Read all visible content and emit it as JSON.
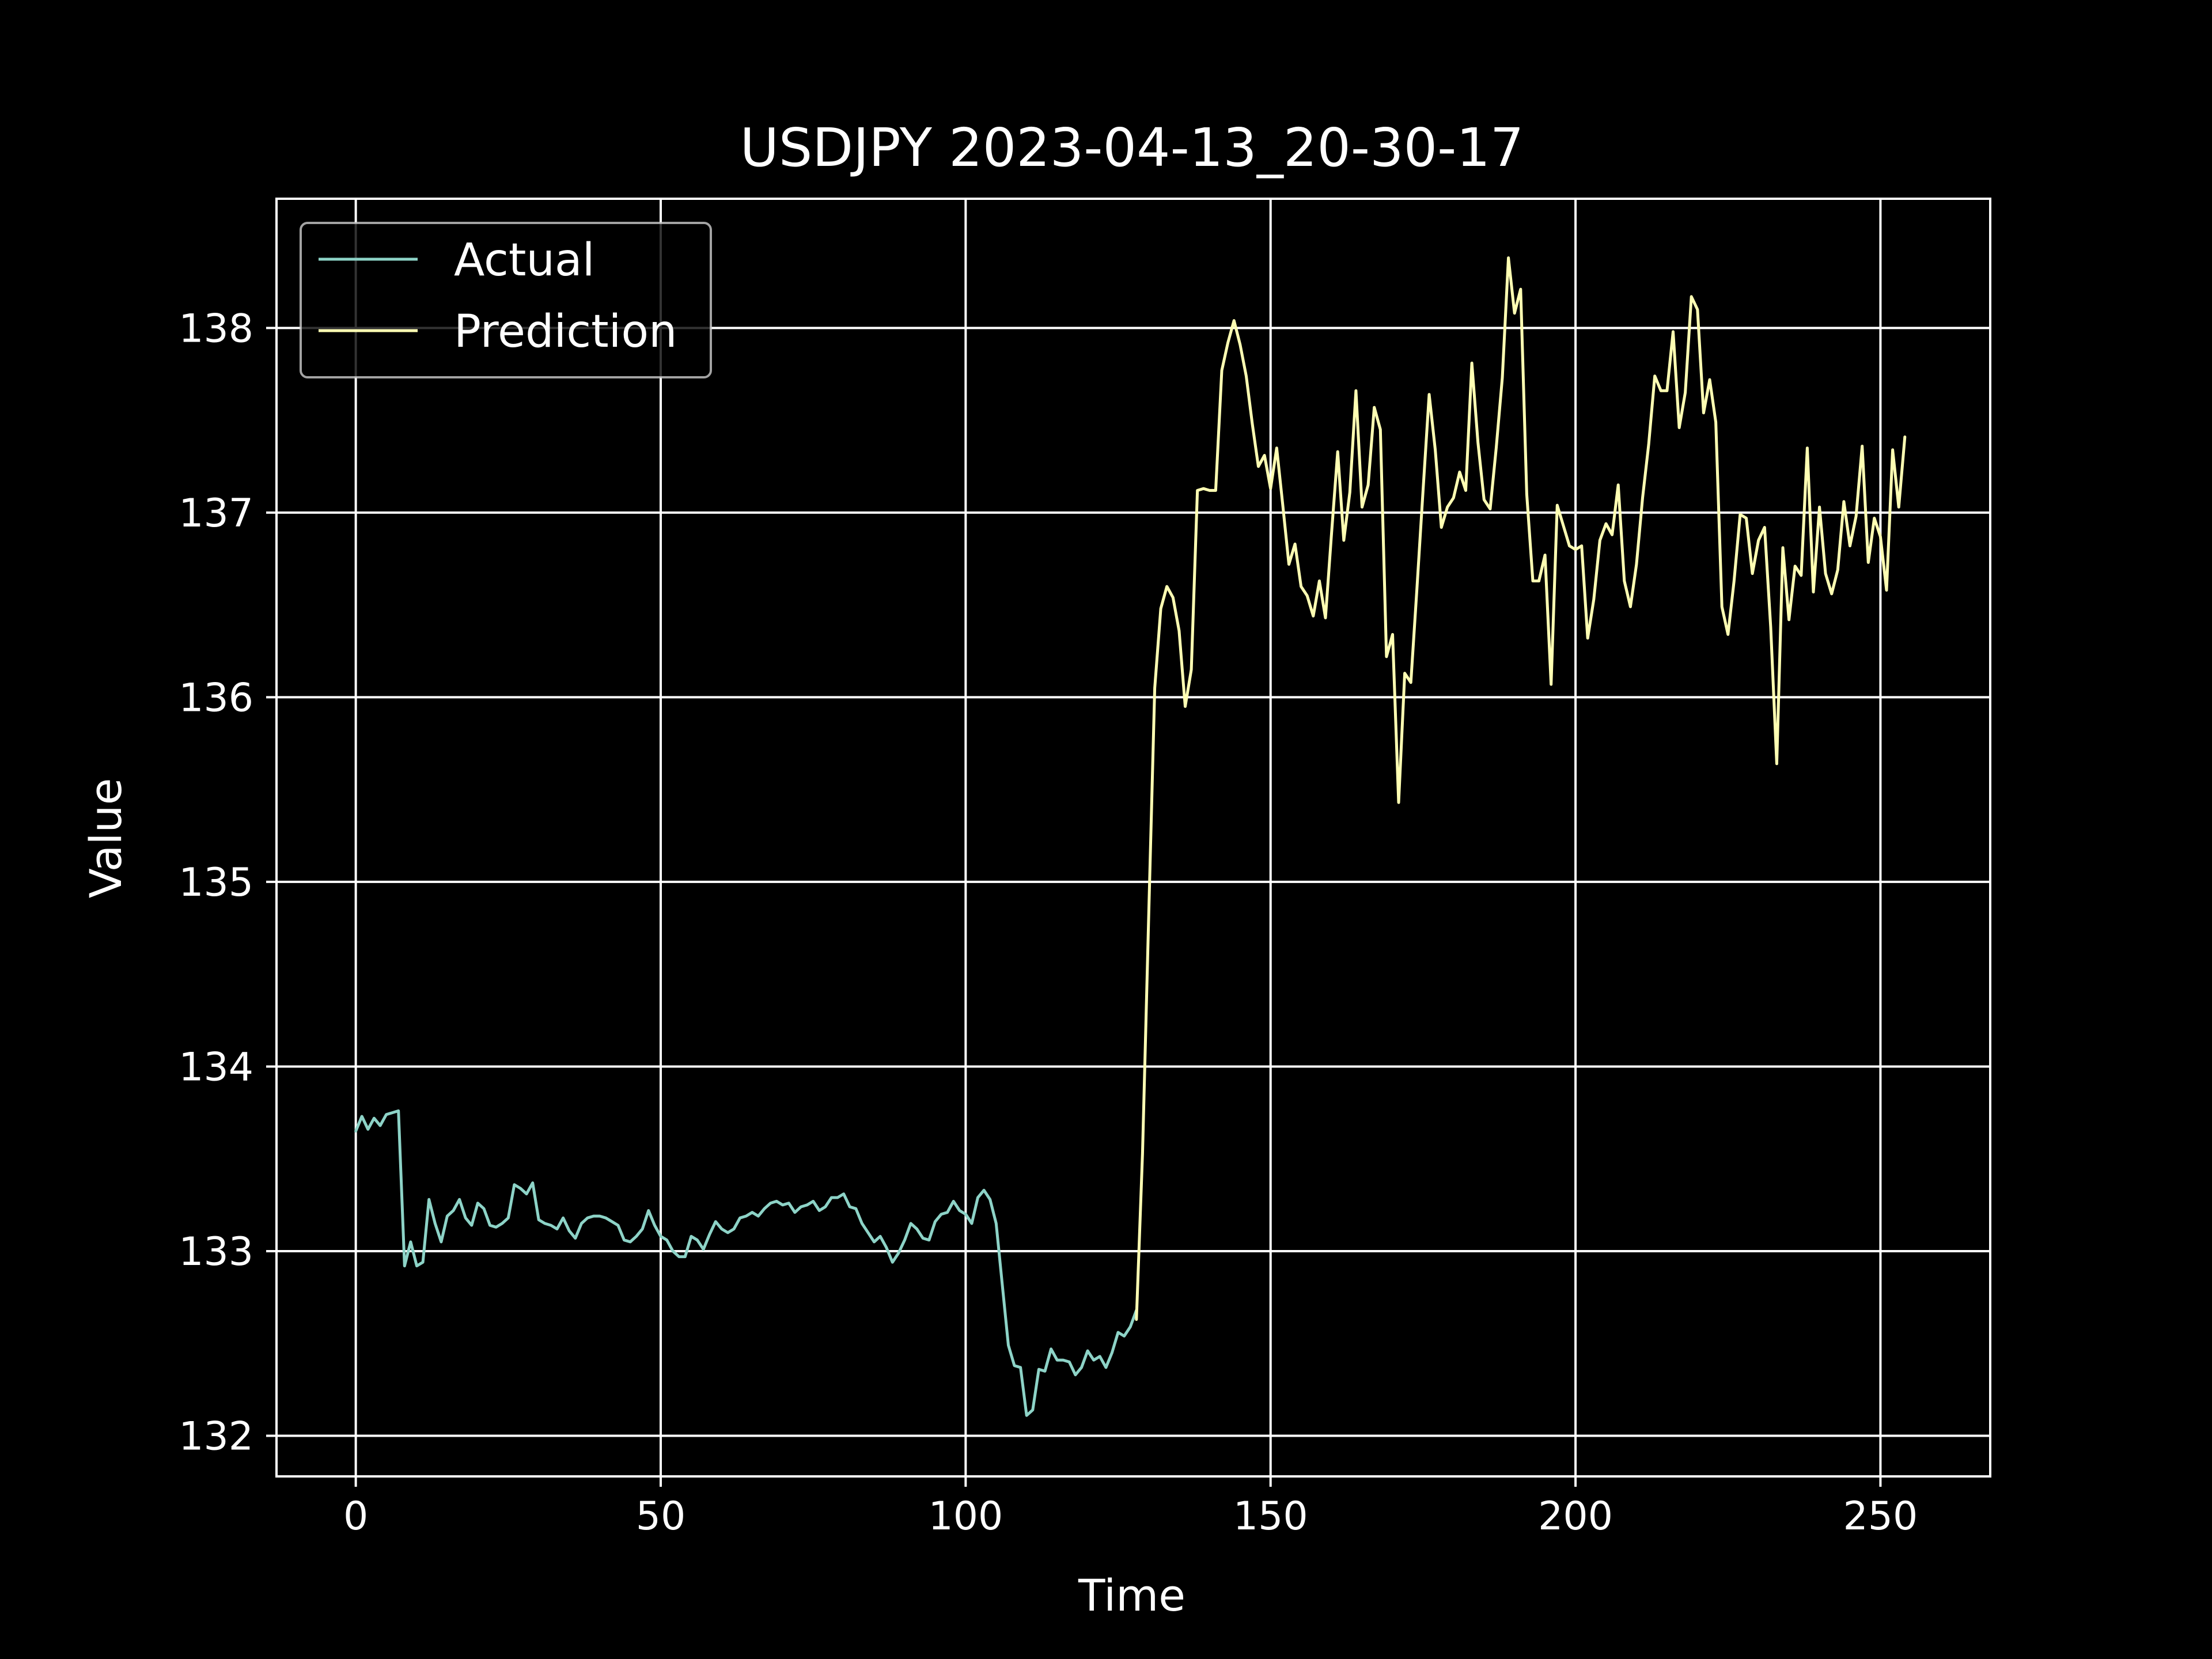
{
  "chart_data": {
    "type": "line",
    "title": "USDJPY 2023-04-13_20-30-17",
    "xlabel": "Time",
    "ylabel": "Value",
    "xlim": [
      -13,
      268
    ],
    "ylim": [
      131.78,
      138.7
    ],
    "xticks": [
      0,
      50,
      100,
      150,
      200,
      250
    ],
    "yticks": [
      132,
      133,
      134,
      135,
      136,
      137,
      138
    ],
    "grid": true,
    "legend": "top-left",
    "background": "#000000",
    "series": [
      {
        "name": "Actual",
        "color": "#8dd3c7",
        "x_start": 0,
        "values": [
          133.65,
          133.73,
          133.66,
          133.72,
          133.68,
          133.74,
          133.75,
          133.76,
          132.92,
          133.05,
          132.92,
          132.94,
          133.28,
          133.15,
          133.05,
          133.19,
          133.22,
          133.28,
          133.18,
          133.14,
          133.26,
          133.23,
          133.14,
          133.13,
          133.15,
          133.18,
          133.36,
          133.34,
          133.31,
          133.37,
          133.17,
          133.15,
          133.14,
          133.12,
          133.18,
          133.11,
          133.07,
          133.15,
          133.18,
          133.19,
          133.19,
          133.18,
          133.16,
          133.14,
          133.06,
          133.05,
          133.08,
          133.12,
          133.22,
          133.14,
          133.08,
          133.06,
          133.0,
          132.97,
          132.97,
          133.08,
          133.06,
          133.01,
          133.09,
          133.16,
          133.12,
          133.1,
          133.12,
          133.18,
          133.19,
          133.21,
          133.19,
          133.23,
          133.26,
          133.27,
          133.25,
          133.26,
          133.21,
          133.24,
          133.25,
          133.27,
          133.22,
          133.24,
          133.29,
          133.29,
          133.31,
          133.24,
          133.23,
          133.15,
          133.1,
          133.05,
          133.08,
          133.02,
          132.94,
          132.99,
          133.06,
          133.15,
          133.12,
          133.07,
          133.06,
          133.16,
          133.2,
          133.21,
          133.27,
          133.22,
          133.2,
          133.15,
          133.29,
          133.33,
          133.28,
          133.15,
          132.82,
          132.49,
          132.38,
          132.37,
          132.11,
          132.14,
          132.36,
          132.35,
          132.47,
          132.41,
          132.41,
          132.4,
          132.33,
          132.37,
          132.46,
          132.41,
          132.43,
          132.37,
          132.45,
          132.56,
          132.54,
          132.59,
          132.68
        ]
      },
      {
        "name": "Prediction",
        "color": "#ffffb3",
        "x_start": 128,
        "values": [
          132.63,
          133.53,
          134.8,
          136.05,
          136.48,
          136.6,
          136.54,
          136.36,
          135.95,
          136.15,
          137.12,
          137.13,
          137.12,
          137.12,
          137.77,
          137.92,
          138.04,
          137.91,
          137.74,
          137.48,
          137.25,
          137.31,
          137.13,
          137.35,
          137.04,
          136.72,
          136.83,
          136.6,
          136.55,
          136.44,
          136.63,
          136.43,
          136.89,
          137.33,
          136.85,
          137.11,
          137.66,
          137.03,
          137.15,
          137.57,
          137.45,
          136.22,
          136.34,
          135.43,
          136.13,
          136.08,
          136.59,
          137.12,
          137.64,
          137.34,
          136.92,
          137.03,
          137.08,
          137.22,
          137.12,
          137.81,
          137.38,
          137.07,
          137.02,
          137.35,
          137.73,
          138.38,
          138.08,
          138.21,
          137.1,
          136.63,
          136.63,
          136.77,
          136.07,
          137.04,
          136.93,
          136.82,
          136.8,
          136.82,
          136.32,
          136.53,
          136.85,
          136.94,
          136.88,
          137.15,
          136.63,
          136.49,
          136.72,
          137.08,
          137.37,
          137.74,
          137.66,
          137.66,
          137.98,
          137.46,
          137.65,
          138.17,
          138.1,
          137.54,
          137.72,
          137.49,
          136.49,
          136.34,
          136.63,
          136.99,
          136.97,
          136.67,
          136.85,
          136.92,
          136.38,
          135.64,
          136.81,
          136.42,
          136.71,
          136.66,
          137.35,
          136.57,
          137.03,
          136.67,
          136.56,
          136.69,
          137.06,
          136.82,
          136.98,
          137.36,
          136.73,
          136.97,
          136.87,
          136.58,
          137.34,
          137.03,
          137.41
        ]
      }
    ]
  }
}
